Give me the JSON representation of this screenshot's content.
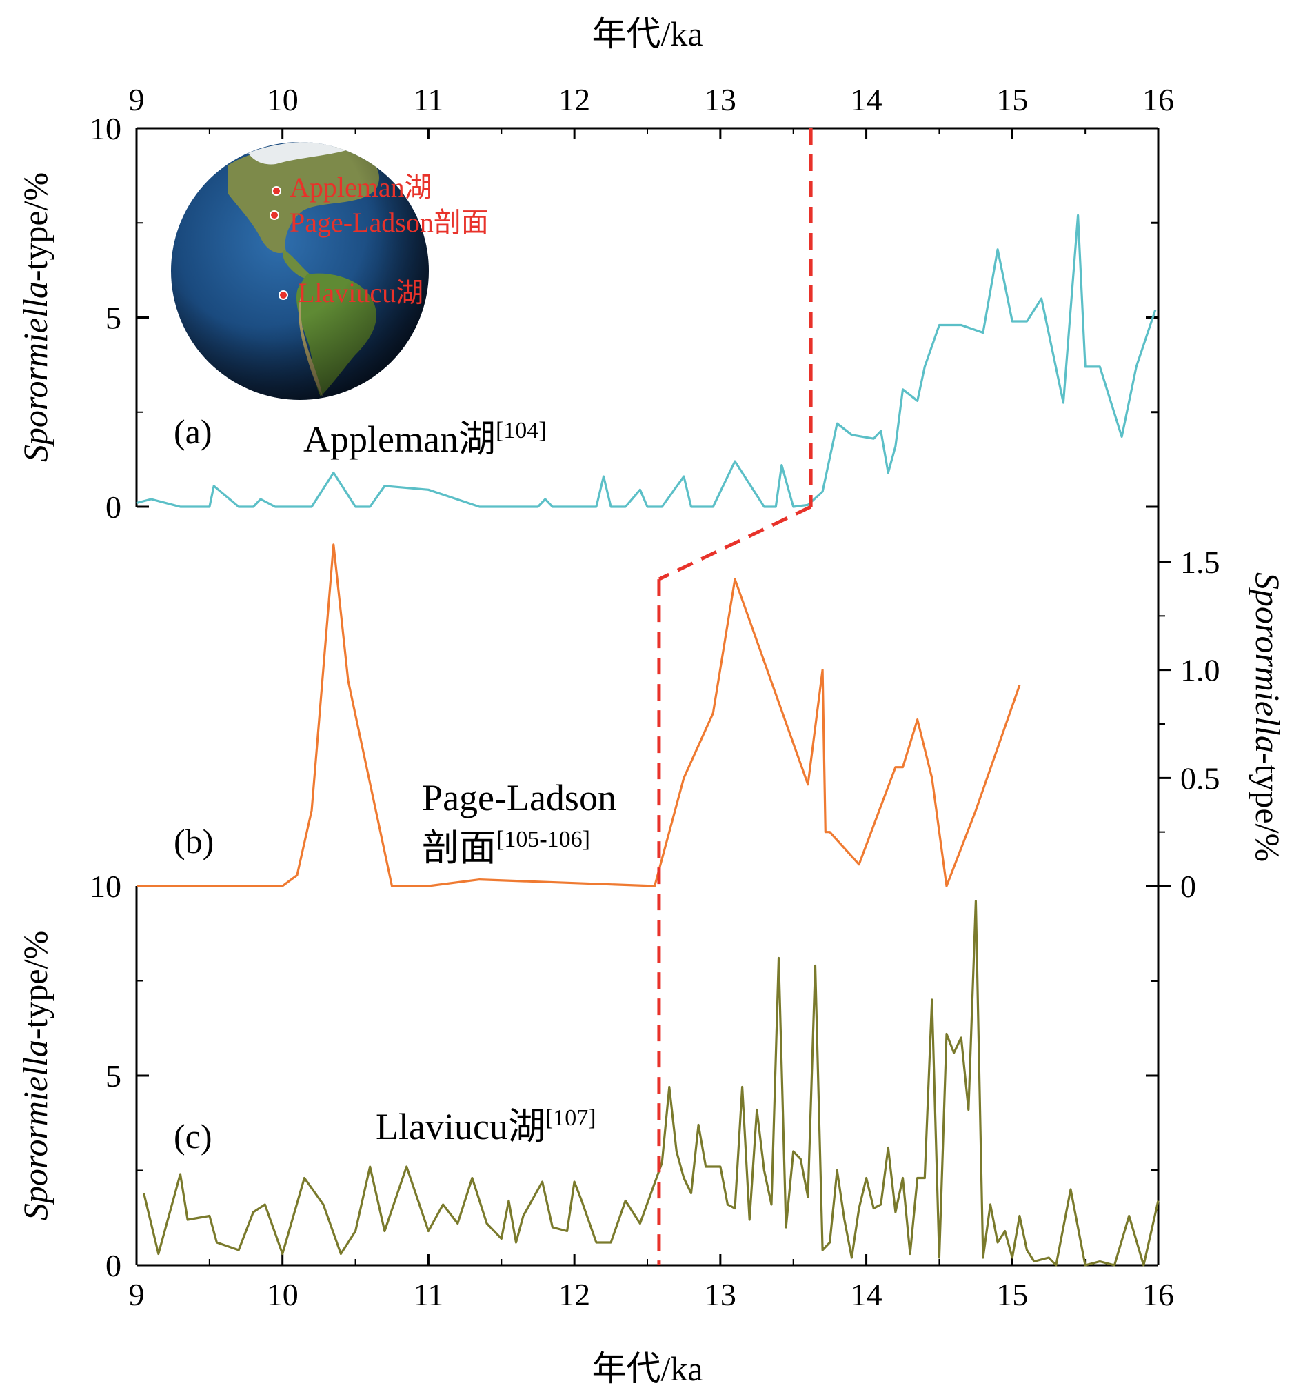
{
  "chart_data": {
    "type": "line",
    "x_axis": {
      "title": "年代/ka",
      "ticks": [
        9,
        10,
        11,
        12,
        13,
        14,
        15,
        16
      ],
      "lim": [
        9,
        16
      ]
    },
    "panels": [
      {
        "id": "a",
        "panel_label": "(a)",
        "series_label": "Appleman湖",
        "reference": "[104]",
        "color": "#5bbfc7",
        "y_axis": {
          "side": "left",
          "title_prefix": "Sporormiella",
          "title_suffix": "-type/%",
          "ticks": [
            0,
            5,
            10
          ],
          "lim": [
            0,
            10
          ]
        },
        "series": [
          {
            "name": "Appleman湖",
            "x": [
              9.0,
              9.1,
              9.3,
              9.5,
              9.53,
              9.7,
              9.8,
              9.85,
              9.95,
              10.2,
              10.35,
              10.5,
              10.6,
              10.7,
              11.0,
              11.35,
              11.75,
              11.8,
              11.85,
              12.15,
              12.2,
              12.25,
              12.35,
              12.45,
              12.5,
              12.6,
              12.75,
              12.8,
              12.95,
              13.1,
              13.3,
              13.38,
              13.42,
              13.5,
              13.6,
              13.7,
              13.8,
              13.9,
              14.05,
              14.1,
              14.15,
              14.2,
              14.25,
              14.35,
              14.4,
              14.5,
              14.65,
              14.8,
              14.9,
              15.0,
              15.1,
              15.2,
              15.35,
              15.45,
              15.5,
              15.6,
              15.75,
              15.85,
              15.98
            ],
            "values": [
              0.1,
              0.2,
              0.0,
              0.0,
              0.55,
              0.0,
              0.0,
              0.2,
              0.0,
              0.0,
              0.9,
              0.0,
              0.0,
              0.55,
              0.45,
              0.0,
              0.0,
              0.2,
              0.0,
              0.0,
              0.8,
              0.0,
              0.0,
              0.45,
              0.0,
              0.0,
              0.8,
              0.0,
              0.0,
              1.2,
              0.0,
              0.0,
              1.1,
              0.0,
              0.05,
              0.4,
              2.2,
              1.9,
              1.8,
              2.0,
              0.9,
              1.6,
              3.1,
              2.8,
              3.7,
              4.8,
              4.8,
              4.6,
              6.8,
              4.9,
              4.9,
              5.5,
              2.75,
              7.7,
              3.7,
              3.7,
              1.85,
              3.7,
              5.2
            ]
          }
        ]
      },
      {
        "id": "b",
        "panel_label": "(b)",
        "series_label_line1": "Page-Ladson",
        "series_label_line2": "剖面",
        "reference": "[105-106]",
        "color": "#ef7a31",
        "y_axis": {
          "side": "right",
          "title_prefix": "Sporormiella",
          "title_suffix": "-type/%",
          "ticks": [
            "1.5",
            "1.0",
            "0.5",
            "0"
          ],
          "lim": [
            0,
            1.5
          ]
        },
        "series": [
          {
            "name": "Page-Ladson剖面",
            "x": [
              9.0,
              10.0,
              10.1,
              10.2,
              10.35,
              10.45,
              10.75,
              11.0,
              11.35,
              12.55,
              12.75,
              12.95,
              13.1,
              13.6,
              13.7,
              13.72,
              13.75,
              13.95,
              14.2,
              14.25,
              14.35,
              14.45,
              14.55,
              14.75,
              15.05
            ],
            "values": [
              0.0,
              0.0,
              0.05,
              0.35,
              1.58,
              0.95,
              0.0,
              0.0,
              0.03,
              0.0,
              0.5,
              0.8,
              1.42,
              0.47,
              1.0,
              0.25,
              0.25,
              0.1,
              0.55,
              0.55,
              0.77,
              0.5,
              0.0,
              0.35,
              0.93
            ]
          }
        ]
      },
      {
        "id": "c",
        "panel_label": "(c)",
        "series_label": "Llaviucu湖",
        "reference": "[107]",
        "color": "#7a7a2c",
        "y_axis": {
          "side": "left",
          "title_prefix": "Sporormiella",
          "title_suffix": "-type/%",
          "ticks": [
            0,
            5,
            10
          ],
          "lim": [
            0,
            10
          ]
        },
        "series": [
          {
            "name": "Llaviucu湖",
            "x": [
              9.05,
              9.15,
              9.3,
              9.35,
              9.5,
              9.55,
              9.7,
              9.8,
              9.88,
              10.0,
              10.15,
              10.28,
              10.4,
              10.5,
              10.6,
              10.7,
              10.85,
              11.0,
              11.1,
              11.2,
              11.3,
              11.4,
              11.5,
              11.55,
              11.6,
              11.65,
              11.78,
              11.85,
              11.95,
              12.0,
              12.05,
              12.15,
              12.25,
              12.35,
              12.45,
              12.6,
              12.65,
              12.7,
              12.75,
              12.8,
              12.85,
              12.9,
              13.0,
              13.05,
              13.1,
              13.15,
              13.2,
              13.25,
              13.3,
              13.35,
              13.4,
              13.45,
              13.5,
              13.55,
              13.6,
              13.65,
              13.7,
              13.75,
              13.8,
              13.85,
              13.9,
              13.95,
              14.0,
              14.05,
              14.1,
              14.15,
              14.2,
              14.25,
              14.3,
              14.35,
              14.4,
              14.45,
              14.5,
              14.55,
              14.6,
              14.65,
              14.7,
              14.75,
              14.8,
              14.85,
              14.9,
              14.95,
              15.0,
              15.05,
              15.1,
              15.15,
              15.25,
              15.3,
              15.4,
              15.5,
              15.6,
              15.7,
              15.8,
              15.9,
              16.0
            ],
            "values": [
              1.9,
              0.3,
              2.4,
              1.2,
              1.3,
              0.6,
              0.4,
              1.4,
              1.6,
              0.3,
              2.3,
              1.6,
              0.3,
              0.9,
              2.6,
              0.9,
              2.6,
              0.9,
              1.6,
              1.1,
              2.3,
              1.1,
              0.7,
              1.7,
              0.6,
              1.3,
              2.2,
              1.0,
              0.9,
              2.2,
              1.7,
              0.6,
              0.6,
              1.7,
              1.1,
              2.7,
              4.7,
              3.0,
              2.3,
              1.9,
              3.7,
              2.6,
              2.6,
              1.6,
              1.5,
              4.7,
              1.2,
              4.1,
              2.5,
              1.6,
              8.1,
              1.0,
              3.0,
              2.8,
              1.8,
              7.9,
              0.4,
              0.6,
              2.5,
              1.2,
              0.2,
              1.5,
              2.3,
              1.5,
              1.6,
              3.1,
              1.4,
              2.3,
              0.3,
              2.3,
              2.3,
              7.0,
              0.2,
              6.1,
              5.6,
              6.0,
              4.1,
              9.6,
              0.2,
              1.6,
              0.6,
              0.9,
              0.2,
              1.3,
              0.4,
              0.1,
              0.2,
              0.0,
              2.0,
              0.0,
              0.1,
              0.0,
              1.3,
              0.0,
              1.7
            ]
          }
        ]
      }
    ],
    "annotations": {
      "boundary_line_color": "#e8322a",
      "boundary_a_x": 13.62,
      "boundary_c_x": 12.58
    },
    "inset": {
      "sites": [
        "Appleman湖",
        "Page-Ladson剖面",
        "Llaviucu湖"
      ]
    },
    "grid": false,
    "legend": "none"
  }
}
